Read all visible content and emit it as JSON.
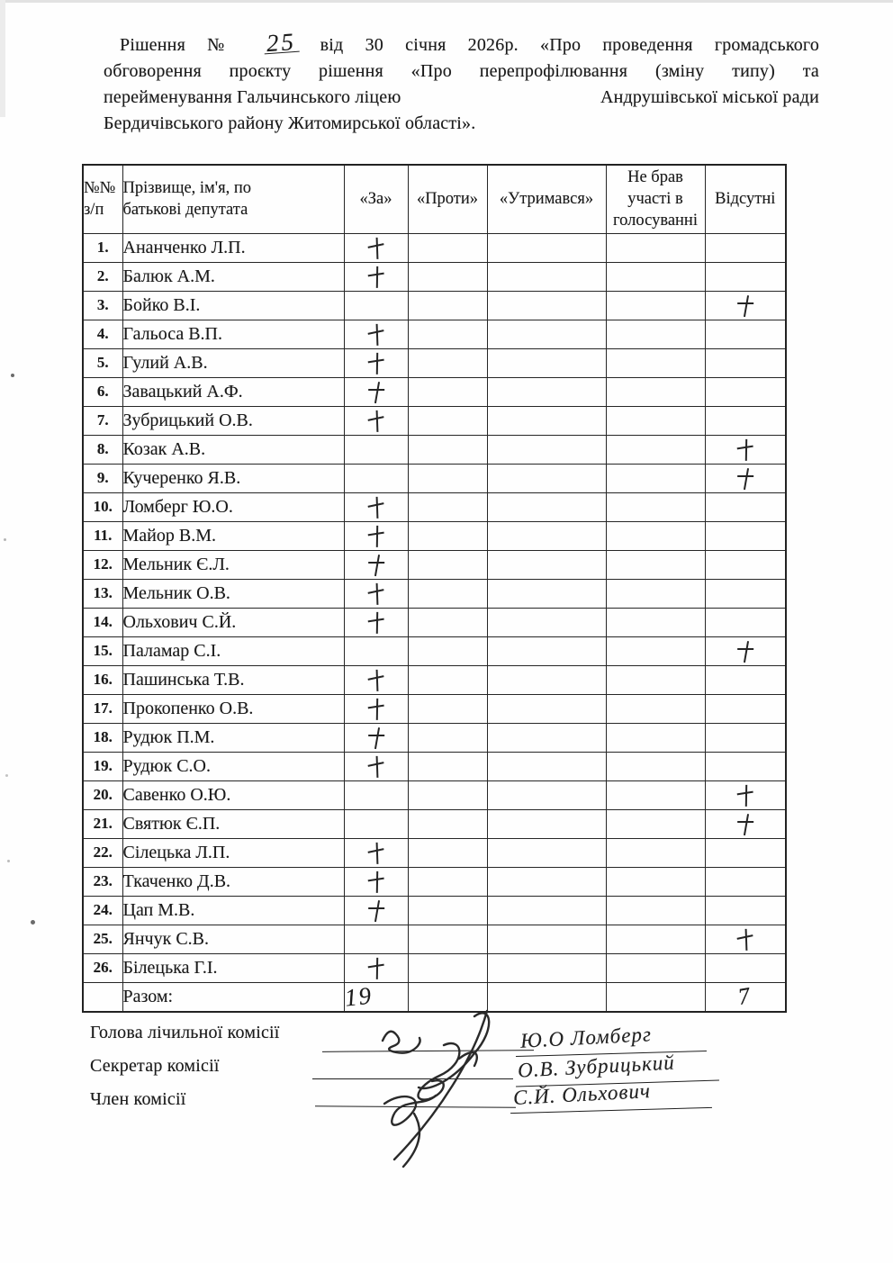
{
  "header": {
    "line1_pre": "Рішення №",
    "decision_no": "25",
    "line1_post": "від  30 січня 2026р. «Про проведення громадського",
    "line2": "обговорення проєкту рішення «Про перепрофілювання (зміну типу) та",
    "line3_left": "перейменування Гальчинського ліцею",
    "line3_right": "Андрушівської міської ради",
    "line4": "Бердичівського району Житомирської області»."
  },
  "table": {
    "headers": {
      "num_line1": "№№",
      "num_line2": "з/п",
      "name": "Прізвище, ім'я, по батькові депутата",
      "za": "«За»",
      "proty": "«Проти»",
      "utrymavsia": "«Утримався»",
      "ne_brav": "Не брав участі в голосуванні",
      "vidsutni": "Відсутні"
    },
    "rows": [
      {
        "n": "1.",
        "name": "Ананченко Л.П.",
        "za": "+",
        "proty": "",
        "utrymavsia": "",
        "ne_brav": "",
        "vidsutni": ""
      },
      {
        "n": "2.",
        "name": "Балюк А.М.",
        "za": "+",
        "proty": "",
        "utrymavsia": "",
        "ne_brav": "",
        "vidsutni": ""
      },
      {
        "n": "3.",
        "name": "Бойко В.І.",
        "za": "",
        "proty": "",
        "utrymavsia": "",
        "ne_brav": "",
        "vidsutni": "+"
      },
      {
        "n": "4.",
        "name": "Гальоса В.П.",
        "za": "+",
        "proty": "",
        "utrymavsia": "",
        "ne_brav": "",
        "vidsutni": ""
      },
      {
        "n": "5.",
        "name": "Гулий А.В.",
        "za": "+",
        "proty": "",
        "utrymavsia": "",
        "ne_brav": "",
        "vidsutni": ""
      },
      {
        "n": "6.",
        "name": "Завацький А.Ф.",
        "za": "+",
        "proty": "",
        "utrymavsia": "",
        "ne_brav": "",
        "vidsutni": ""
      },
      {
        "n": "7.",
        "name": "Зубрицький О.В.",
        "za": "+",
        "proty": "",
        "utrymavsia": "",
        "ne_brav": "",
        "vidsutni": ""
      },
      {
        "n": "8.",
        "name": "Козак А.В.",
        "za": "",
        "proty": "",
        "utrymavsia": "",
        "ne_brav": "",
        "vidsutni": "+"
      },
      {
        "n": "9.",
        "name": "Кучеренко Я.В.",
        "za": "",
        "proty": "",
        "utrymavsia": "",
        "ne_brav": "",
        "vidsutni": "+"
      },
      {
        "n": "10.",
        "name": "Ломберг Ю.О.",
        "za": "+",
        "proty": "",
        "utrymavsia": "",
        "ne_brav": "",
        "vidsutni": ""
      },
      {
        "n": "11.",
        "name": "Майор В.М.",
        "za": "+",
        "proty": "",
        "utrymavsia": "",
        "ne_brav": "",
        "vidsutni": ""
      },
      {
        "n": "12.",
        "name": "Мельник Є.Л.",
        "za": "+",
        "proty": "",
        "utrymavsia": "",
        "ne_brav": "",
        "vidsutni": ""
      },
      {
        "n": "13.",
        "name": "Мельник О.В.",
        "za": "+",
        "proty": "",
        "utrymavsia": "",
        "ne_brav": "",
        "vidsutni": ""
      },
      {
        "n": "14.",
        "name": "Ольхович С.Й.",
        "za": "+",
        "proty": "",
        "utrymavsia": "",
        "ne_brav": "",
        "vidsutni": ""
      },
      {
        "n": "15.",
        "name": "Паламар С.І.",
        "za": "",
        "proty": "",
        "utrymavsia": "",
        "ne_brav": "",
        "vidsutni": "+"
      },
      {
        "n": "16.",
        "name": "Пашинська Т.В.",
        "za": "+",
        "proty": "",
        "utrymavsia": "",
        "ne_brav": "",
        "vidsutni": ""
      },
      {
        "n": "17.",
        "name": "Прокопенко О.В.",
        "za": "+",
        "proty": "",
        "utrymavsia": "",
        "ne_brav": "",
        "vidsutni": ""
      },
      {
        "n": "18.",
        "name": "Рудюк П.М.",
        "za": "+",
        "proty": "",
        "utrymavsia": "",
        "ne_brav": "",
        "vidsutni": ""
      },
      {
        "n": "19.",
        "name": "Рудюк С.О.",
        "za": "+",
        "proty": "",
        "utrymavsia": "",
        "ne_brav": "",
        "vidsutni": ""
      },
      {
        "n": "20.",
        "name": "Савенко О.Ю.",
        "za": "",
        "proty": "",
        "utrymavsia": "",
        "ne_brav": "",
        "vidsutni": "+"
      },
      {
        "n": "21.",
        "name": "Святюк Є.П.",
        "za": "",
        "proty": "",
        "utrymavsia": "",
        "ne_brav": "",
        "vidsutni": "+"
      },
      {
        "n": "22.",
        "name": "Сілецька Л.П.",
        "za": "+",
        "proty": "",
        "utrymavsia": "",
        "ne_brav": "",
        "vidsutni": ""
      },
      {
        "n": "23.",
        "name": "Ткаченко Д.В.",
        "za": "+",
        "proty": "",
        "utrymavsia": "",
        "ne_brav": "",
        "vidsutni": ""
      },
      {
        "n": "24.",
        "name": "Цап М.В.",
        "za": "+",
        "proty": "",
        "utrymavsia": "",
        "ne_brav": "",
        "vidsutni": ""
      },
      {
        "n": "25.",
        "name": "Янчук С.В.",
        "za": "",
        "proty": "",
        "utrymavsia": "",
        "ne_brav": "",
        "vidsutni": "+"
      },
      {
        "n": "26.",
        "name": "Білецька Г.І.",
        "za": "+",
        "proty": "",
        "utrymavsia": "",
        "ne_brav": "",
        "vidsutni": ""
      }
    ],
    "total": {
      "label": "Разом:",
      "za": "19",
      "vidsutni": "7"
    }
  },
  "signatures": {
    "row1": {
      "role": "Голова лічильної комісії",
      "name": "Ю.О Ломберг"
    },
    "row2": {
      "role": "Секретар комісії",
      "name": "О.В. Зубрицький"
    },
    "row3": {
      "role": "Член комісії",
      "name": "С.Й. Ольхович"
    }
  },
  "ink_color": "#1b1b1b"
}
